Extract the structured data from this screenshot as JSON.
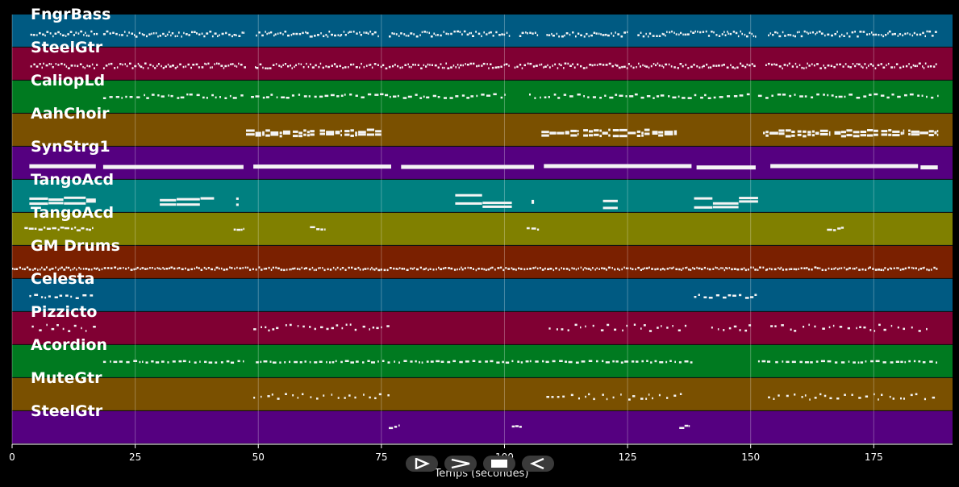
{
  "xaxis": {
    "label": "Temps (secondes)",
    "ticks": [
      0,
      25,
      50,
      75,
      100,
      125,
      150,
      175
    ],
    "range": [
      0,
      191
    ]
  },
  "controls": [
    {
      "name": "play-forward-button",
      "icon": "play-outline-icon"
    },
    {
      "name": "fast-forward-button",
      "icon": "chevron-right-icon"
    },
    {
      "name": "stop-button",
      "icon": "stop-icon"
    },
    {
      "name": "rewind-button",
      "icon": "play-reverse-icon"
    }
  ],
  "tracks": [
    {
      "name": "FngrBass",
      "color": "#005a82",
      "density": "dense",
      "pitch": [
        0.48,
        0.64
      ],
      "segments": [
        [
          3.7,
          17.4
        ],
        [
          18.5,
          47.2
        ],
        [
          49.5,
          74.5
        ],
        [
          76.5,
          101
        ],
        [
          103,
          107
        ],
        [
          108.5,
          125
        ],
        [
          127,
          151
        ],
        [
          153.5,
          188
        ]
      ]
    },
    {
      "name": "SteelGtr",
      "color": "#800033",
      "density": "dense",
      "pitch": [
        0.45,
        0.6
      ],
      "segments": [
        [
          3.7,
          17.4
        ],
        [
          18.5,
          47.5
        ],
        [
          49.3,
          101
        ],
        [
          102,
          151
        ],
        [
          153,
          188
        ]
      ]
    },
    {
      "name": "CaliopLd",
      "color": "#007a20",
      "density": "medium",
      "pitch": [
        0.38,
        0.5
      ],
      "segments": [
        [
          18.5,
          47
        ],
        [
          48.5,
          100
        ],
        [
          105,
          150
        ],
        [
          151.5,
          188
        ]
      ]
    },
    {
      "name": "AahChoir",
      "color": "#7a5000",
      "density": "chord",
      "pitch": [
        0.45,
        0.55
      ],
      "segments": [
        [
          47.5,
          56.5
        ],
        [
          57,
          61.5
        ],
        [
          62.5,
          67
        ],
        [
          67.5,
          75
        ],
        [
          107.5,
          115
        ],
        [
          116,
          121.5
        ],
        [
          122,
          129.5
        ],
        [
          130,
          135
        ],
        [
          152.5,
          159
        ],
        [
          159.5,
          166
        ],
        [
          167,
          176
        ],
        [
          176.5,
          181
        ],
        [
          182,
          188
        ]
      ]
    },
    {
      "name": "SynStrg1",
      "color": "#550080",
      "density": "sustain",
      "pitch": [
        0.52,
        0.58
      ],
      "segments": [
        [
          3.5,
          17
        ],
        [
          18.5,
          47
        ],
        [
          49,
          77
        ],
        [
          79,
          106
        ],
        [
          108,
          138
        ],
        [
          139,
          151
        ],
        [
          154,
          184
        ],
        [
          184.5,
          188
        ]
      ]
    },
    {
      "name": "TangoAcd",
      "color": "#008080",
      "density": "sustain-low",
      "pitch": [
        0.4,
        0.72
      ],
      "segments": [
        [
          3.5,
          17
        ],
        [
          30,
          41
        ],
        [
          45.5,
          46
        ],
        [
          90,
          101.5
        ],
        [
          105.5,
          106
        ],
        [
          120,
          123
        ],
        [
          138.5,
          151.5
        ]
      ]
    },
    {
      "name": "TangoAcd",
      "color": "#808000",
      "density": "sparse",
      "pitch": [
        0.4,
        0.5
      ],
      "segments": [
        [
          2.5,
          16.5
        ],
        [
          45,
          47
        ],
        [
          60.5,
          63.5
        ],
        [
          104.5,
          107
        ],
        [
          165.5,
          169
        ]
      ]
    },
    {
      "name": "GM Drums",
      "color": "#7a2000",
      "density": "dense",
      "pitch": [
        0.62,
        0.7
      ],
      "segments": [
        [
          0,
          188
        ]
      ]
    },
    {
      "name": "Celesta",
      "color": "#005a82",
      "density": "medium",
      "pitch": [
        0.45,
        0.55
      ],
      "segments": [
        [
          3.5,
          16.5
        ],
        [
          138.5,
          151.5
        ]
      ]
    },
    {
      "name": "Pizzicto",
      "color": "#800033",
      "density": "scattered",
      "pitch": [
        0.35,
        0.55
      ],
      "segments": [
        [
          4,
          17
        ],
        [
          49,
          77
        ],
        [
          109,
          137
        ],
        [
          142,
          151
        ],
        [
          154,
          186
        ]
      ]
    },
    {
      "name": "Acordion",
      "color": "#007a20",
      "density": "medium",
      "pitch": [
        0.45,
        0.5
      ],
      "segments": [
        [
          18.5,
          47
        ],
        [
          49.5,
          138.5
        ],
        [
          151.5,
          154
        ],
        [
          155,
          188
        ]
      ]
    },
    {
      "name": "MuteGtr",
      "color": "#7a5000",
      "density": "scattered",
      "pitch": [
        0.45,
        0.62
      ],
      "segments": [
        [
          49,
          77
        ],
        [
          108.5,
          137
        ],
        [
          153.5,
          188
        ]
      ]
    },
    {
      "name": "SteelGtr",
      "color": "#550080",
      "density": "sparse",
      "pitch": [
        0.4,
        0.48
      ],
      "segments": [
        [
          76.5,
          78.5
        ],
        [
          101.5,
          103.5
        ],
        [
          135.5,
          137.5
        ]
      ]
    }
  ]
}
